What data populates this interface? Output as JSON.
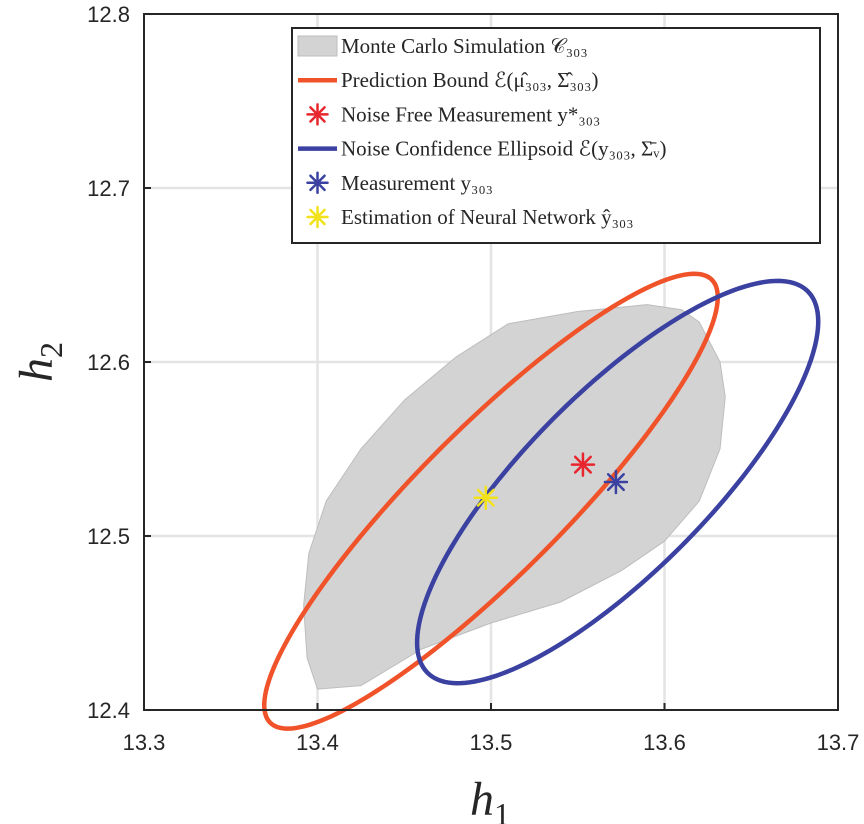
{
  "chart_data": {
    "type": "scatter",
    "title": "",
    "xlabel": {
      "base": "h",
      "sub": "1"
    },
    "ylabel": {
      "base": "h",
      "sub": "2"
    },
    "xlim": [
      13.3,
      13.7
    ],
    "ylim": [
      12.4,
      12.8
    ],
    "xticks": [
      "13.3",
      "13.4",
      "13.5",
      "13.6",
      "13.7"
    ],
    "yticks": [
      "12.4",
      "12.5",
      "12.6",
      "12.7",
      "12.8"
    ],
    "grid": true,
    "legend_position": "top-right",
    "legend": [
      {
        "key": "mc",
        "text": "Monte Carlo Simulation 𝒞₃₀₃",
        "marker": "patch",
        "color": "#d3d3d3"
      },
      {
        "key": "pred",
        "text": "Prediction Bound ℰ(μ̂₃₀₃, Σ̂₃₀₃)",
        "marker": "line",
        "color": "#f0522a"
      },
      {
        "key": "nf",
        "text": "Noise Free Measurement y*₃₀₃",
        "marker": "asterisk",
        "color": "#e8262e"
      },
      {
        "key": "nc",
        "text": "Noise Confidence Ellipsoid ℰ(y₃₀₃, Σ̄ᵥ)",
        "marker": "line",
        "color": "#3a41a0"
      },
      {
        "key": "meas",
        "text": "Measurement y₃₀₃",
        "marker": "asterisk",
        "color": "#3a41a0"
      },
      {
        "key": "nn",
        "text": "Estimation of Neural Network ŷ₃₀₃",
        "marker": "asterisk",
        "color": "#f2e21b"
      }
    ],
    "monte_carlo_region": [
      [
        13.392,
        12.46
      ],
      [
        13.395,
        12.49
      ],
      [
        13.405,
        12.52
      ],
      [
        13.425,
        12.55
      ],
      [
        13.45,
        12.578
      ],
      [
        13.48,
        12.603
      ],
      [
        13.51,
        12.622
      ],
      [
        13.55,
        12.629
      ],
      [
        13.59,
        12.633
      ],
      [
        13.61,
        12.63
      ],
      [
        13.62,
        12.623
      ],
      [
        13.632,
        12.6
      ],
      [
        13.635,
        12.58
      ],
      [
        13.632,
        12.55
      ],
      [
        13.62,
        12.52
      ],
      [
        13.6,
        12.497
      ],
      [
        13.575,
        12.48
      ],
      [
        13.54,
        12.462
      ],
      [
        13.5,
        12.45
      ],
      [
        13.46,
        12.435
      ],
      [
        13.425,
        12.414
      ],
      [
        13.4,
        12.412
      ],
      [
        13.394,
        12.43
      ]
    ],
    "prediction_bound": {
      "center": [
        13.5,
        12.52
      ],
      "semi_axes": [
        0.18,
        0.042
      ],
      "angle_deg": 45,
      "color": "#f0522a"
    },
    "noise_ellipsoid": {
      "center": [
        13.573,
        12.531
      ],
      "semi_axes": [
        0.155,
        0.052
      ],
      "angle_deg": 45,
      "color": "#3a41a0"
    },
    "points": [
      {
        "name": "Noise Free Measurement",
        "x": 13.553,
        "y": 12.541,
        "color": "#e8262e"
      },
      {
        "name": "Measurement",
        "x": 13.572,
        "y": 12.531,
        "color": "#3a41a0"
      },
      {
        "name": "Estimation of Neural Network",
        "x": 13.497,
        "y": 12.522,
        "color": "#f2e21b"
      }
    ]
  }
}
